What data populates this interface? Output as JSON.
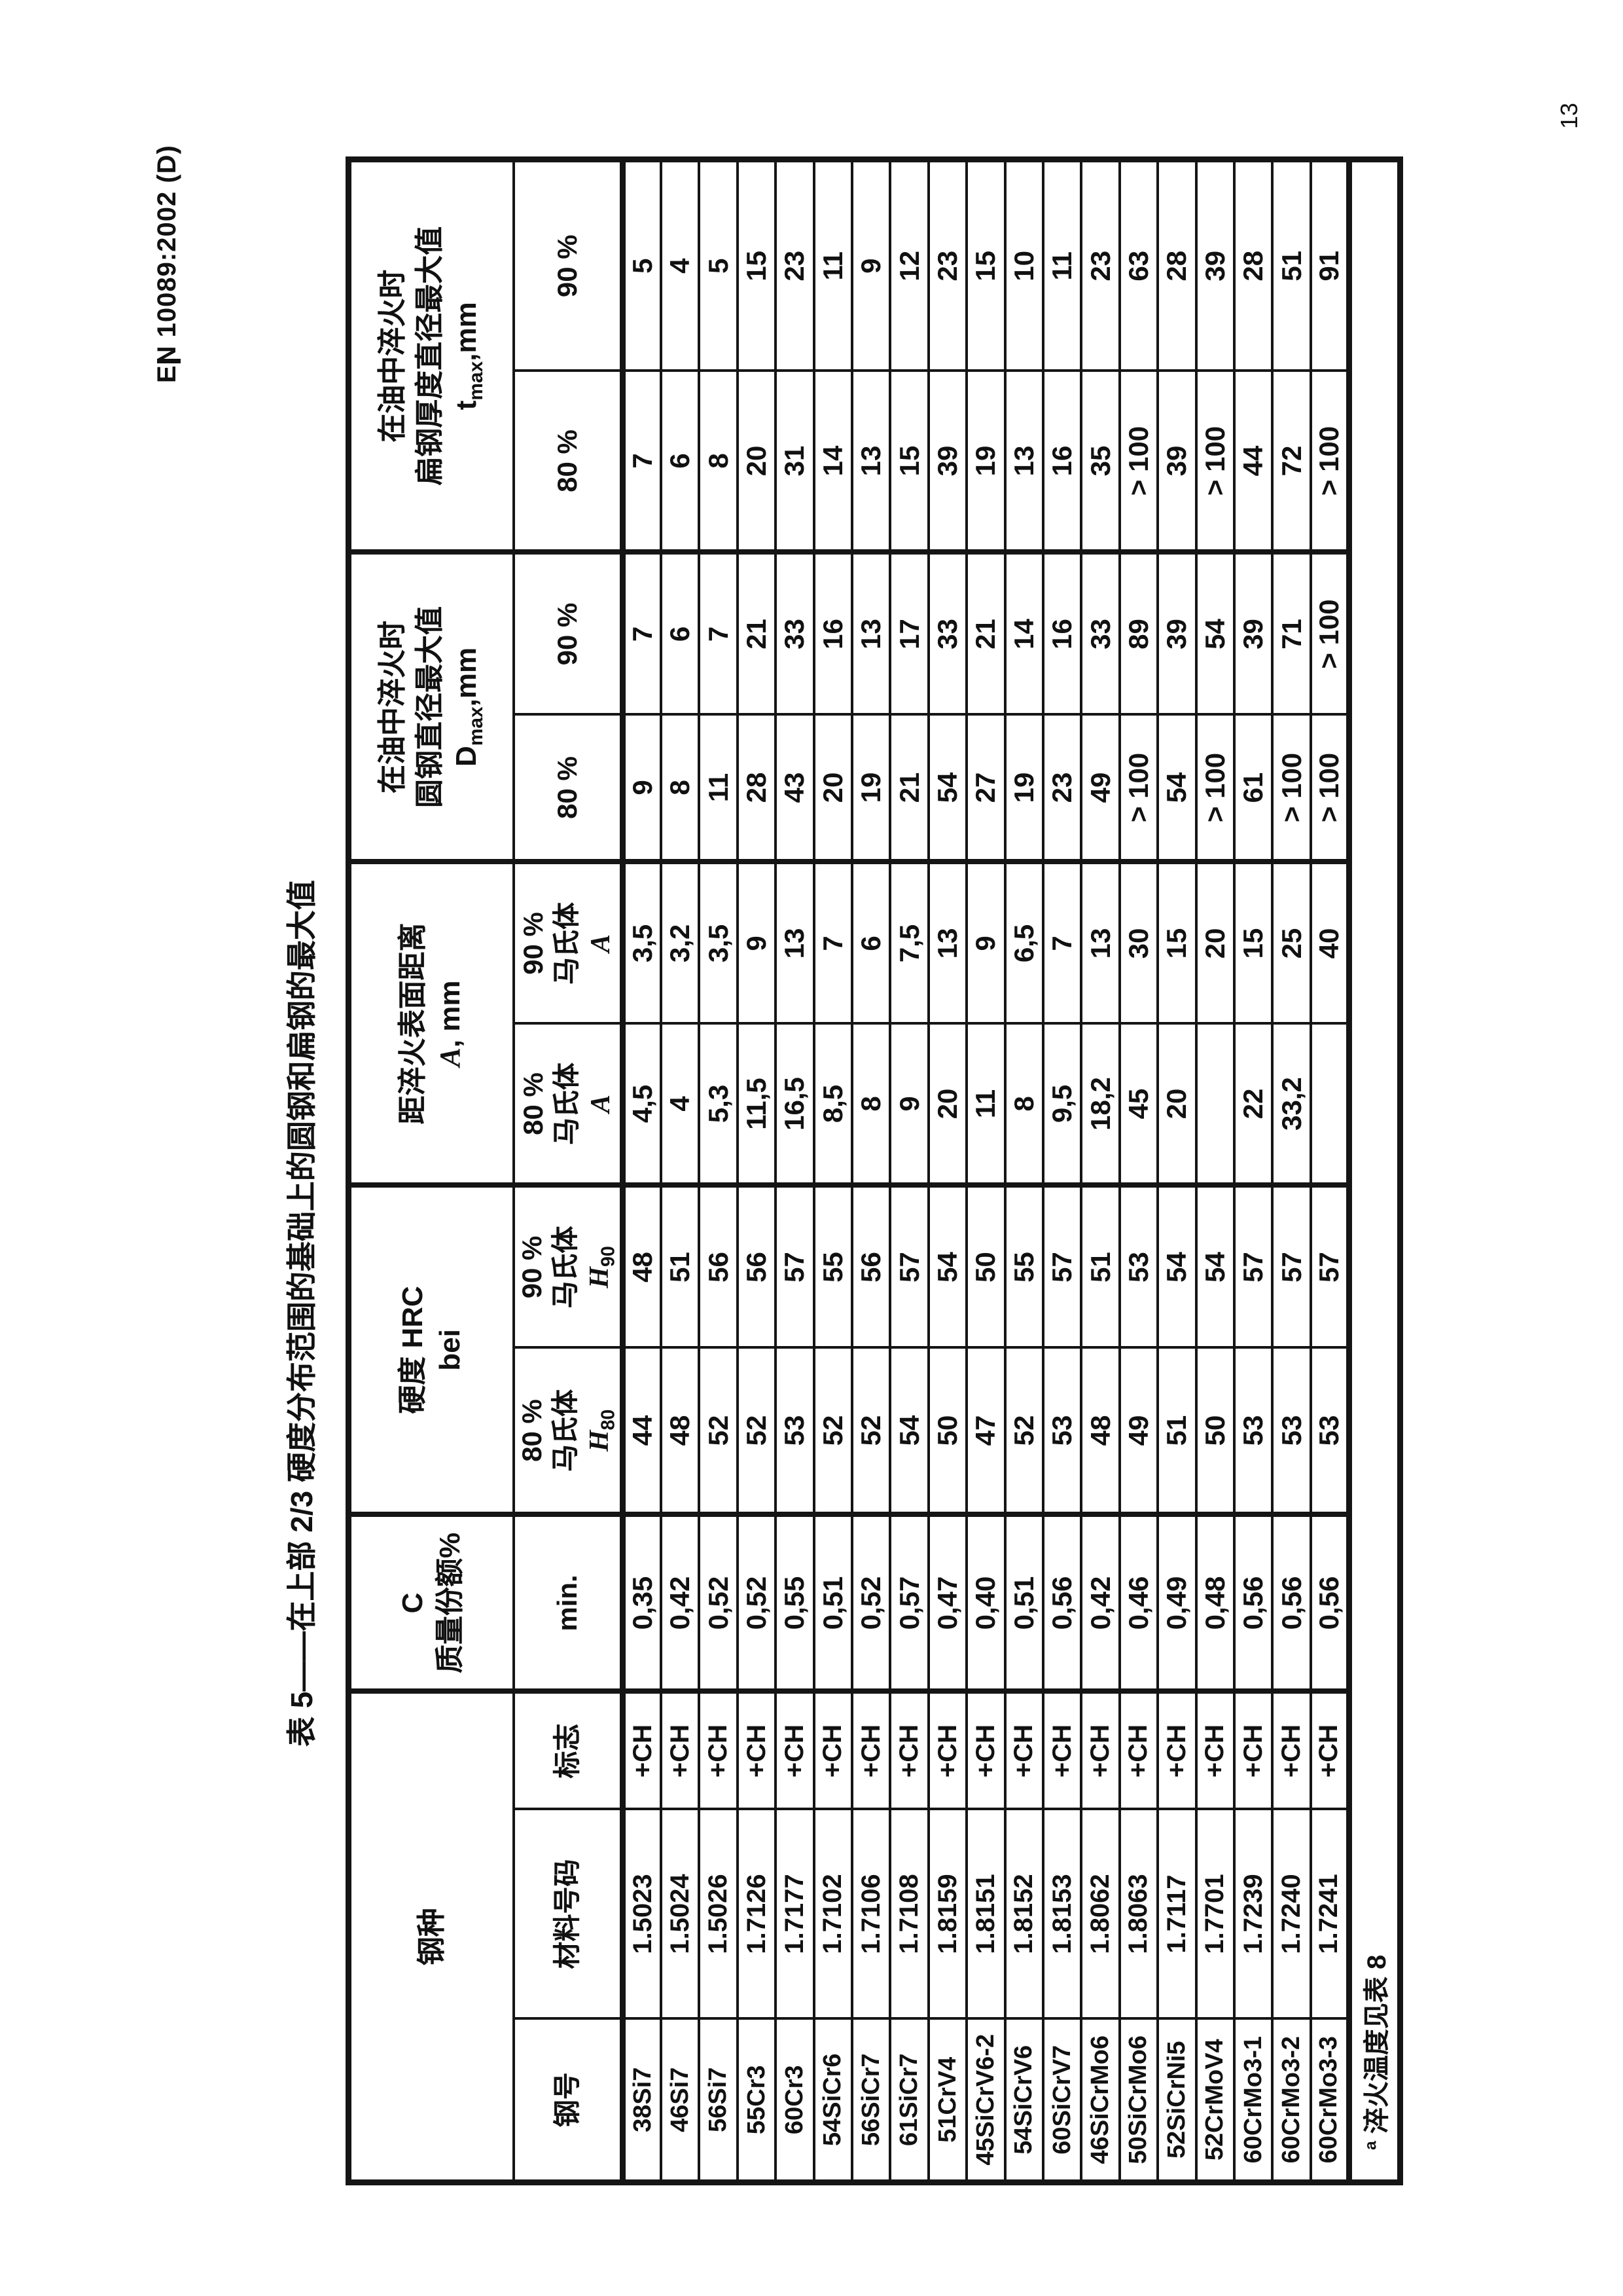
{
  "page": {
    "standard_reference": "EN 10089:2002 (D)",
    "page_number": "13",
    "ink_color": "#111111",
    "paper_color": "#ffffff"
  },
  "table": {
    "title": "表 5——在上部 2/3 硬度分布范围的基础上的圆钢和扁钢的最大值",
    "headers": {
      "steel_group": "钢种",
      "steel_name": "钢号",
      "material_number": "材料号码",
      "mark": "标志",
      "carbon_line1": "C",
      "carbon_line2": "质量份额%",
      "carbon_min": "min.",
      "hardness_line1": "硬度 HRC",
      "hardness_line2": "bei",
      "pct80": "80 %",
      "pct90": "90 %",
      "martensite": "马氏体",
      "h_symbol": "H",
      "h80_sub": "80",
      "h90_sub": "90",
      "distance_line1": "距淬火表面距离",
      "a_symbol": "A",
      "a_unit": ", mm",
      "round_line1": "在油中淬火时",
      "round_line2": "圆钢直径最大值",
      "d_symbol": "D",
      "d_sub": "max",
      "d_unit": ",mm",
      "flat_line1": "在油中淬火时",
      "flat_line2": "扁钢厚度直径最大值",
      "t_symbol": "t",
      "t_sub": "max",
      "t_unit": ",mm"
    },
    "column_keys": [
      "name",
      "number",
      "mark",
      "c_min",
      "h80",
      "h90",
      "a80",
      "a90",
      "d80",
      "d90",
      "t80",
      "t90"
    ],
    "rows": [
      {
        "name": "38Si7",
        "number": "1.5023",
        "mark": "+CH",
        "c_min": "0,35",
        "h80": "44",
        "h90": "48",
        "a80": "4,5",
        "a90": "3,5",
        "d80": "9",
        "d90": "7",
        "t80": "7",
        "t90": "5"
      },
      {
        "name": "46Si7",
        "number": "1.5024",
        "mark": "+CH",
        "c_min": "0,42",
        "h80": "48",
        "h90": "51",
        "a80": "4",
        "a90": "3,2",
        "d80": "8",
        "d90": "6",
        "t80": "6",
        "t90": "4"
      },
      {
        "name": "56Si7",
        "number": "1.5026",
        "mark": "+CH",
        "c_min": "0,52",
        "h80": "52",
        "h90": "56",
        "a80": "5,3",
        "a90": "3,5",
        "d80": "11",
        "d90": "7",
        "t80": "8",
        "t90": "5"
      },
      {
        "name": "55Cr3",
        "number": "1.7126",
        "mark": "+CH",
        "c_min": "0,52",
        "h80": "52",
        "h90": "56",
        "a80": "11,5",
        "a90": "9",
        "d80": "28",
        "d90": "21",
        "t80": "20",
        "t90": "15"
      },
      {
        "name": "60Cr3",
        "number": "1.7177",
        "mark": "+CH",
        "c_min": "0,55",
        "h80": "53",
        "h90": "57",
        "a80": "16,5",
        "a90": "13",
        "d80": "43",
        "d90": "33",
        "t80": "31",
        "t90": "23"
      },
      {
        "name": "54SiCr6",
        "number": "1.7102",
        "mark": "+CH",
        "c_min": "0,51",
        "h80": "52",
        "h90": "55",
        "a80": "8,5",
        "a90": "7",
        "d80": "20",
        "d90": "16",
        "t80": "14",
        "t90": "11"
      },
      {
        "name": "56SiCr7",
        "number": "1.7106",
        "mark": "+CH",
        "c_min": "0,52",
        "h80": "52",
        "h90": "56",
        "a80": "8",
        "a90": "6",
        "d80": "19",
        "d90": "13",
        "t80": "13",
        "t90": "9"
      },
      {
        "name": "61SiCr7",
        "number": "1.7108",
        "mark": "+CH",
        "c_min": "0,57",
        "h80": "54",
        "h90": "57",
        "a80": "9",
        "a90": "7,5",
        "d80": "21",
        "d90": "17",
        "t80": "15",
        "t90": "12"
      },
      {
        "name": "51CrV4",
        "number": "1.8159",
        "mark": "+CH",
        "c_min": "0,47",
        "h80": "50",
        "h90": "54",
        "a80": "20",
        "a90": "13",
        "d80": "54",
        "d90": "33",
        "t80": "39",
        "t90": "23"
      },
      {
        "name": "45SiCrV6-2",
        "number": "1.8151",
        "mark": "+CH",
        "c_min": "0,40",
        "h80": "47",
        "h90": "50",
        "a80": "11",
        "a90": "9",
        "d80": "27",
        "d90": "21",
        "t80": "19",
        "t90": "15"
      },
      {
        "name": "54SiCrV6",
        "number": "1.8152",
        "mark": "+CH",
        "c_min": "0,51",
        "h80": "52",
        "h90": "55",
        "a80": "8",
        "a90": "6,5",
        "d80": "19",
        "d90": "14",
        "t80": "13",
        "t90": "10"
      },
      {
        "name": "60SiCrV7",
        "number": "1.8153",
        "mark": "+CH",
        "c_min": "0,56",
        "h80": "53",
        "h90": "57",
        "a80": "9,5",
        "a90": "7",
        "d80": "23",
        "d90": "16",
        "t80": "16",
        "t90": "11"
      },
      {
        "name": "46SiCrMo6",
        "number": "1.8062",
        "mark": "+CH",
        "c_min": "0,42",
        "h80": "48",
        "h90": "51",
        "a80": "18,2",
        "a90": "13",
        "d80": "49",
        "d90": "33",
        "t80": "35",
        "t90": "23"
      },
      {
        "name": "50SiCrMo6",
        "number": "1.8063",
        "mark": "+CH",
        "c_min": "0,46",
        "h80": "49",
        "h90": "53",
        "a80": "45",
        "a90": "30",
        "d80": "> 100",
        "d90": "89",
        "t80": "> 100",
        "t90": "63"
      },
      {
        "name": "52SiCrNi5",
        "number": "1.7117",
        "mark": "+CH",
        "c_min": "0,49",
        "h80": "51",
        "h90": "54",
        "a80": "20",
        "a90": "15",
        "d80": "54",
        "d90": "39",
        "t80": "39",
        "t90": "28"
      },
      {
        "name": "52CrMoV4",
        "number": "1.7701",
        "mark": "+CH",
        "c_min": "0,48",
        "h80": "50",
        "h90": "54",
        "a80": "",
        "a90": "20",
        "d80": "> 100",
        "d90": "54",
        "t80": "> 100",
        "t90": "39"
      },
      {
        "name": "60CrMo3-1",
        "number": "1.7239",
        "mark": "+CH",
        "c_min": "0,56",
        "h80": "53",
        "h90": "57",
        "a80": "22",
        "a90": "15",
        "d80": "61",
        "d90": "39",
        "t80": "44",
        "t90": "28"
      },
      {
        "name": "60CrMo3-2",
        "number": "1.7240",
        "mark": "+CH",
        "c_min": "0,56",
        "h80": "53",
        "h90": "57",
        "a80": "33,2",
        "a90": "25",
        "d80": "> 100",
        "d90": "71",
        "t80": "72",
        "t90": "51"
      },
      {
        "name": "60CrMo3-3",
        "number": "1.7241",
        "mark": "+CH",
        "c_min": "0,56",
        "h80": "53",
        "h90": "57",
        "a80": "",
        "a90": "40",
        "d80": "> 100",
        "d90": "> 100",
        "t80": "> 100",
        "t90": "91"
      }
    ],
    "footnote": {
      "marker": "a",
      "text": "淬火温度见表 8"
    }
  }
}
